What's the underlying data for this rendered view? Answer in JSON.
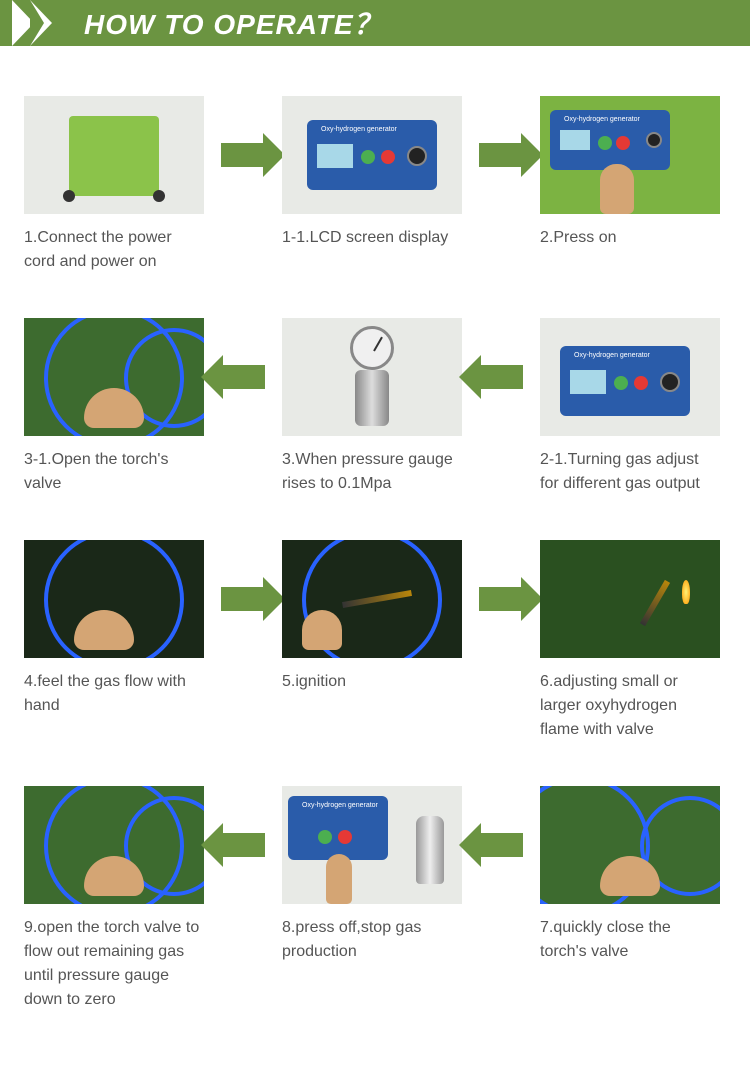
{
  "header": {
    "title": "HOW TO OPERATE？",
    "bar_color": "#6b9441",
    "title_color": "#ffffff",
    "title_fontsize": 28
  },
  "arrow_color": "#6b9441",
  "caption_color": "#555555",
  "caption_fontsize": 16,
  "panel_label": "Oxy-hydrogen generator",
  "rows": [
    {
      "direction": "right",
      "steps": [
        {
          "caption": "1.Connect the power cord and power on",
          "scene": "machine"
        },
        {
          "caption": "1-1.LCD screen display",
          "scene": "panel-white"
        },
        {
          "caption": "2.Press on",
          "scene": "panel-press"
        }
      ]
    },
    {
      "direction": "left",
      "steps": [
        {
          "caption": "3-1.Open the torch's valve",
          "scene": "torch-valve"
        },
        {
          "caption": "3.When pressure gauge rises to 0.1Mpa",
          "scene": "gauge"
        },
        {
          "caption": "2-1.Turning gas adjust for different gas output",
          "scene": "panel-adjust"
        }
      ]
    },
    {
      "direction": "right",
      "steps": [
        {
          "caption": "4.feel the gas flow with hand",
          "scene": "feel-gas"
        },
        {
          "caption": "5.ignition",
          "scene": "ignition"
        },
        {
          "caption": "6.adjusting small or larger oxyhydrogen flame with valve",
          "scene": "flame"
        }
      ]
    },
    {
      "direction": "left",
      "steps": [
        {
          "caption": "9.open the torch valve to flow out remaining gas until pressure gauge down to zero",
          "scene": "torch-valve"
        },
        {
          "caption": "8.press off,stop gas production",
          "scene": "press-off"
        },
        {
          "caption": "7.quickly close the torch's valve",
          "scene": "close-valve"
        }
      ]
    }
  ]
}
